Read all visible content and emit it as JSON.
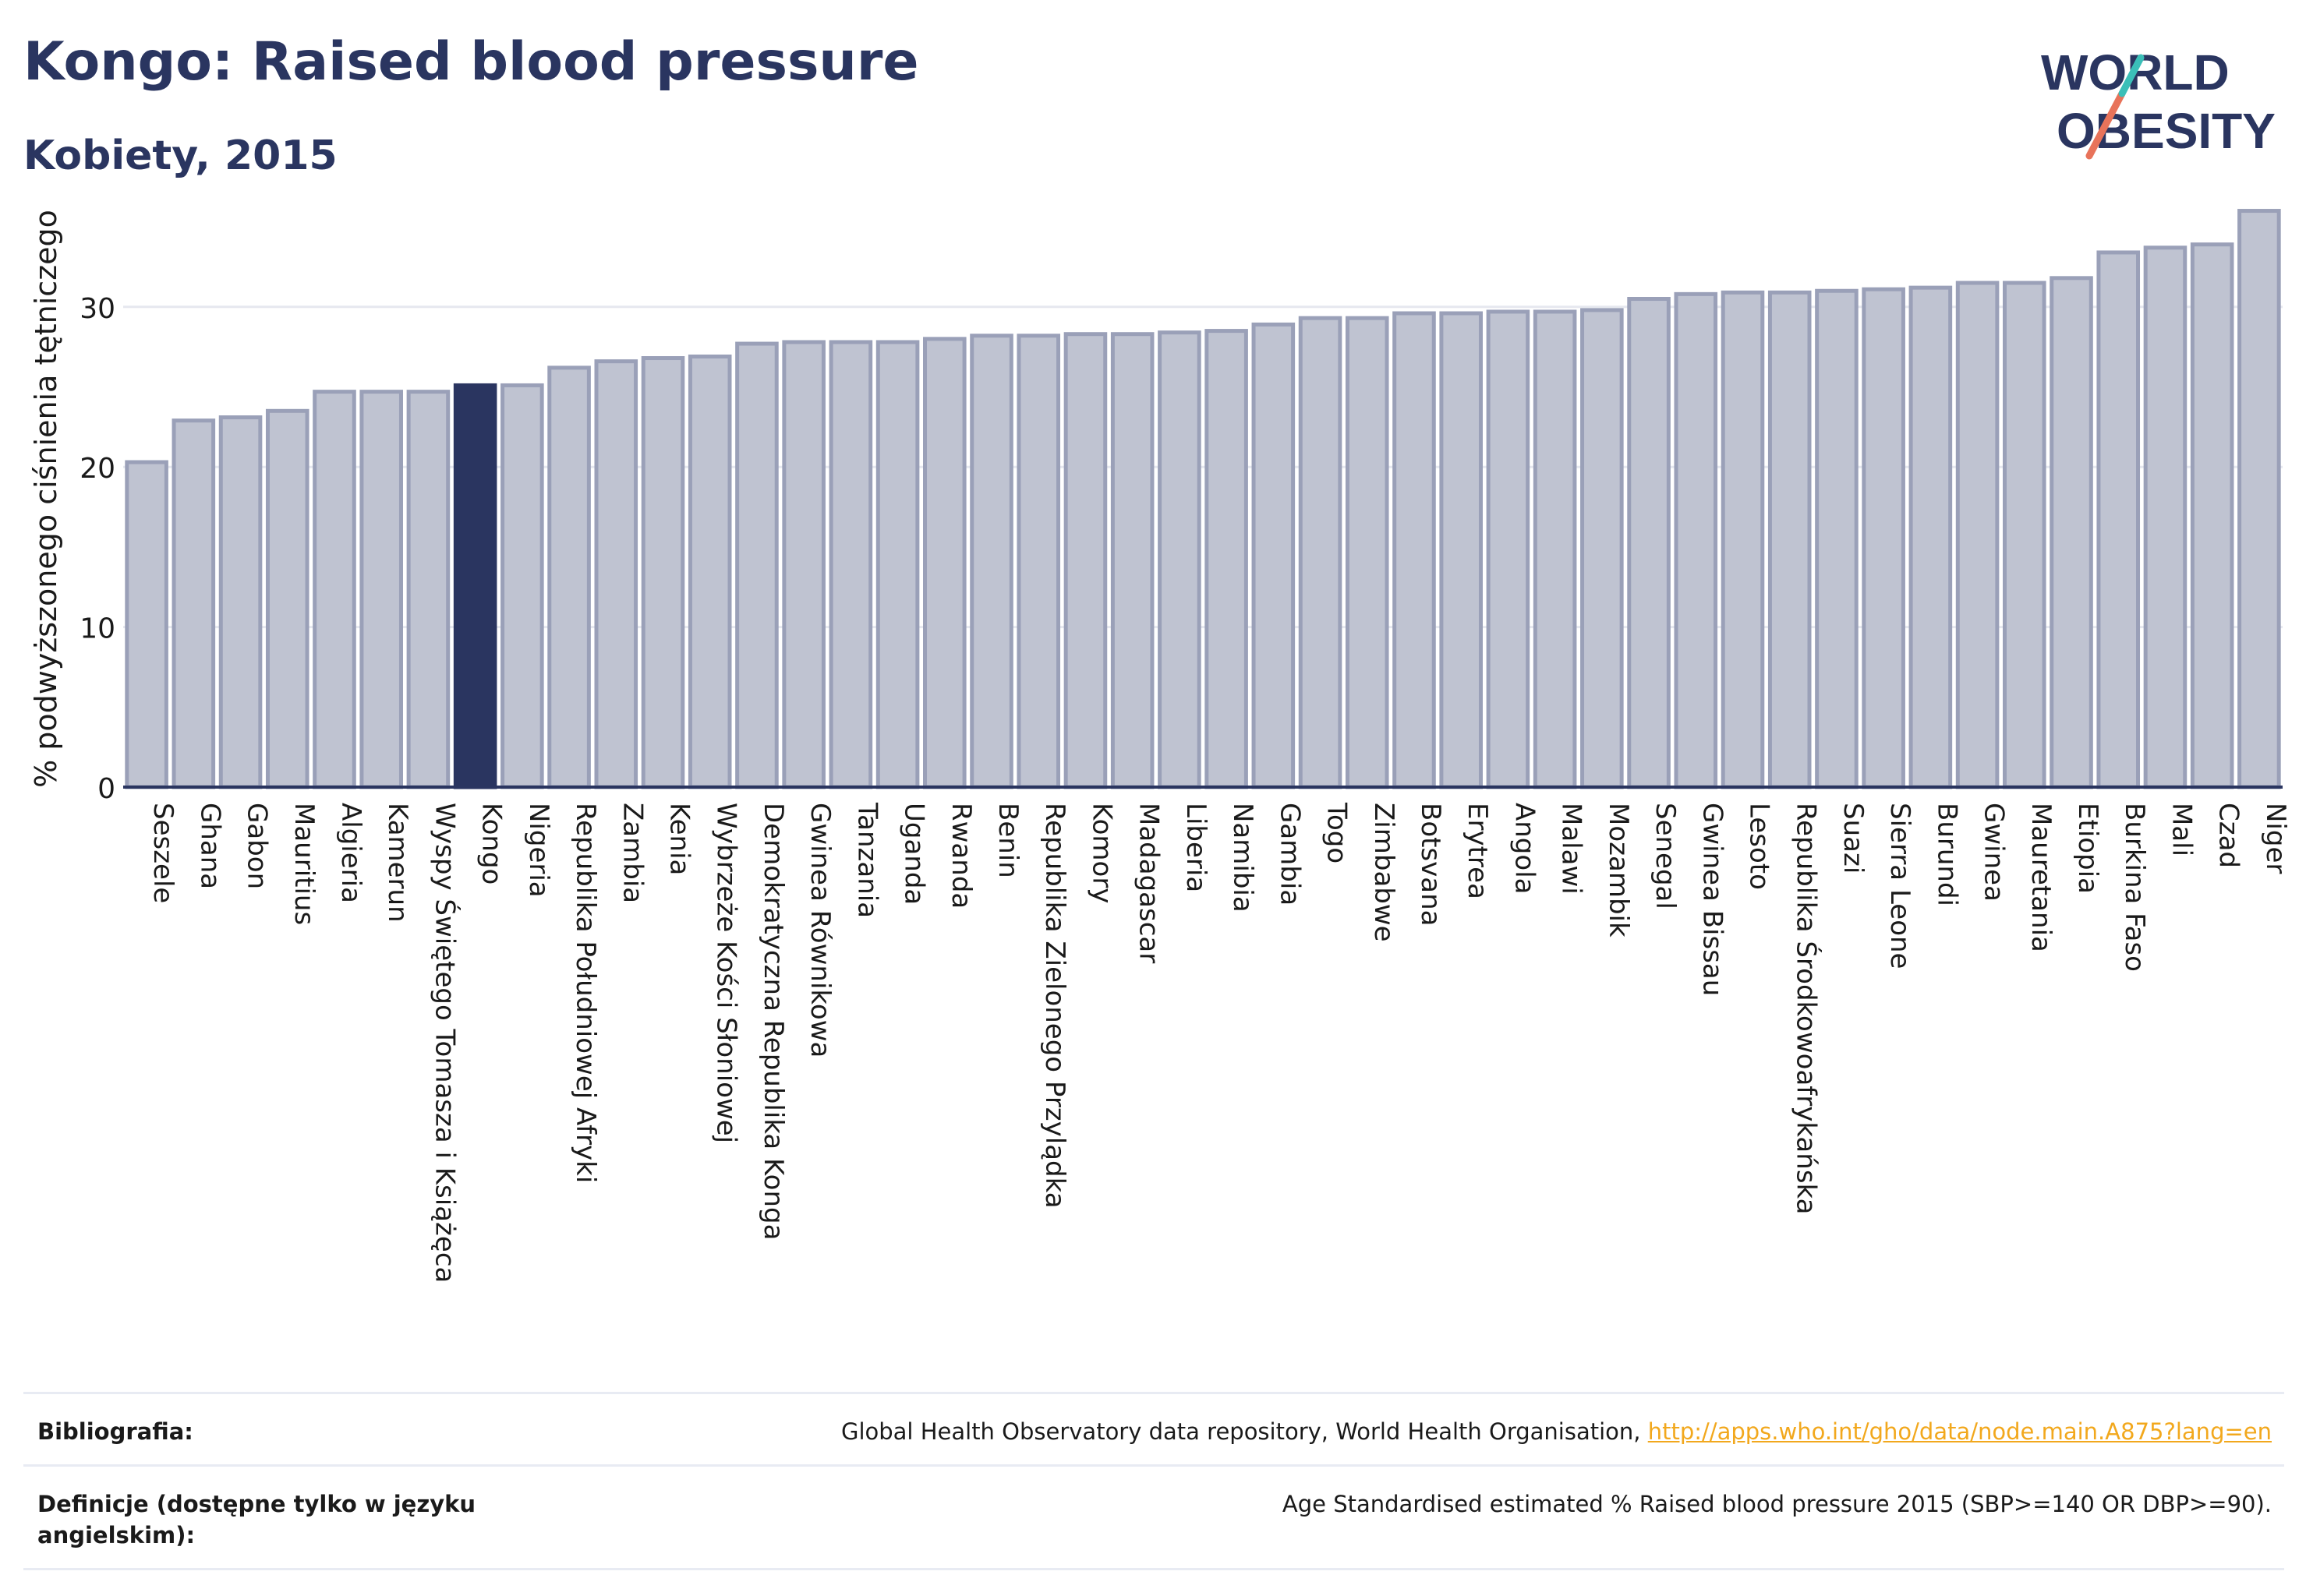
{
  "header": {
    "title": "Kongo: Raised blood pressure",
    "subtitle": "Kobiety, 2015"
  },
  "logo": {
    "line1": "WORLD",
    "line2": "OBESITY"
  },
  "colors": {
    "bar": "#bfc3d1",
    "bar_border": "#9aa0b8",
    "highlight": "#2a3560",
    "axis": "#2a3560",
    "grid": "#e6e8ef"
  },
  "chart_data": {
    "type": "bar",
    "title": "Kongo: Raised blood pressure",
    "subtitle": "Kobiety, 2015",
    "xlabel": "",
    "ylabel": "% podwyższonego ciśnienia tętniczego",
    "ylim": [
      0,
      37
    ],
    "yticks": [
      0,
      10,
      20,
      30
    ],
    "grid": true,
    "highlight": "Kongo",
    "categories": [
      "Seszele",
      "Ghana",
      "Gabon",
      "Mauritius",
      "Algieria",
      "Kamerun",
      "Wyspy Świętego Tomasza i Książęca",
      "Kongo",
      "Nigeria",
      "Republika Południowej Afryki",
      "Zambia",
      "Kenia",
      "Wybrzeże Kości Słoniowej",
      "Demokratyczna Republika Konga",
      "Gwinea Równikowa",
      "Tanzania",
      "Uganda",
      "Rwanda",
      "Benin",
      "Republika Zielonego Przylądka",
      "Komory",
      "Madagascar",
      "Liberia",
      "Namibia",
      "Gambia",
      "Togo",
      "Zimbabwe",
      "Botsvana",
      "Erytrea",
      "Angola",
      "Malawi",
      "Mozambik",
      "Senegal",
      "Gwinea Bissau",
      "Lesoto",
      "Republika Środkowoafrykańska",
      "Suazi",
      "Sierra Leone",
      "Burundi",
      "Gwinea",
      "Mauretania",
      "Etiopia",
      "Burkina Faso",
      "Mali",
      "Czad",
      "Niger"
    ],
    "values": [
      20.3,
      22.9,
      23.1,
      23.5,
      24.7,
      24.7,
      24.7,
      25.1,
      25.1,
      26.2,
      26.6,
      26.8,
      26.9,
      27.7,
      27.8,
      27.8,
      27.8,
      28.0,
      28.2,
      28.2,
      28.3,
      28.3,
      28.4,
      28.5,
      28.9,
      29.3,
      29.3,
      29.6,
      29.6,
      29.7,
      29.7,
      29.8,
      30.5,
      30.8,
      30.9,
      30.9,
      31.0,
      31.1,
      31.2,
      31.5,
      31.5,
      31.8,
      33.4,
      33.7,
      33.9,
      36.0
    ]
  },
  "footer": {
    "bibliography_label": "Bibliografia:",
    "bibliography_text": "Global Health Observatory data repository, World Health Organisation,",
    "bibliography_link": "http://apps.who.int/gho/data/node.main.A875?lang=en",
    "definitions_label": "Definicje (dostępne tylko w języku angielskim):",
    "definitions_text": "Age Standardised estimated % Raised blood pressure 2015 (SBP>=140 OR DBP>=90)."
  }
}
